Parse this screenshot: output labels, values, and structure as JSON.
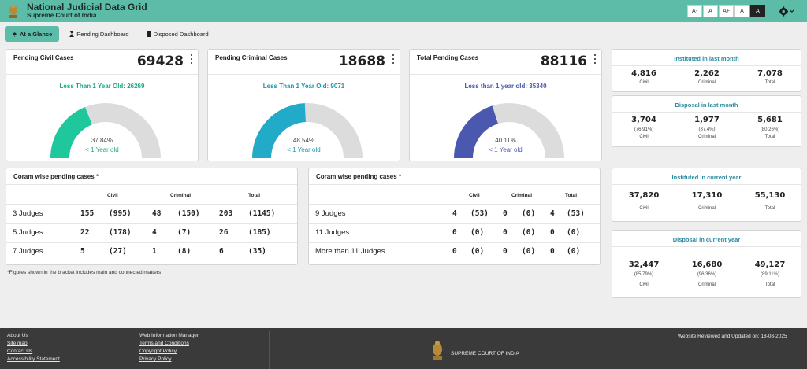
{
  "header": {
    "title": "National Judicial Data Grid",
    "subtitle": "Supreme Court of India",
    "font_buttons": [
      "A-",
      "A",
      "A+",
      "A",
      "A"
    ],
    "settings_icon": "gear-icon",
    "bg_color": "#5cbca7"
  },
  "tabs": [
    {
      "label": "At a Glance",
      "icon": "bell-icon",
      "active": true
    },
    {
      "label": "Pending Dashboard",
      "icon": "hourglass-icon",
      "active": false
    },
    {
      "label": "Disposed Dashboard",
      "icon": "trash-icon",
      "active": false
    }
  ],
  "cards": [
    {
      "title": "Pending Civil Cases",
      "total": "69428",
      "sub": "Less Than 1 Year Old: 26269",
      "percent": "37.84%",
      "fraction": 0.3784,
      "label": "< 1 Year old",
      "color": "#1fc79c"
    },
    {
      "title": "Pending Criminal Cases",
      "total": "18688",
      "sub": "Less Than 1 Year Old: 9071",
      "percent": "48.54%",
      "fraction": 0.4854,
      "label": "< 1 Year old",
      "color": "#22aac9"
    },
    {
      "title": "Total Pending Cases",
      "total": "88116",
      "sub": "Less than 1 year old: 35340",
      "percent": "40.11%",
      "fraction": 0.4011,
      "label": "< 1 Year old",
      "color": "#4a58b0"
    }
  ],
  "stats": {
    "instituted_month": {
      "title": "Instituted in last month",
      "cols": [
        {
          "value": "4,816",
          "label": "Civil"
        },
        {
          "value": "2,262",
          "label": "Criminal"
        },
        {
          "value": "7,078",
          "label": "Total"
        }
      ]
    },
    "disposal_month": {
      "title": "Disposal in last month",
      "cols": [
        {
          "value": "3,704",
          "pct": "(76.91%)",
          "label": "Civil"
        },
        {
          "value": "1,977",
          "pct": "(87.4%)",
          "label": "Criminal"
        },
        {
          "value": "5,681",
          "pct": "(80.26%)",
          "label": "Total"
        }
      ]
    },
    "instituted_year": {
      "title": "Instituted in current year",
      "cols": [
        {
          "value": "37,820",
          "label": "Civil"
        },
        {
          "value": "17,310",
          "label": "Criminal"
        },
        {
          "value": "55,130",
          "label": "Total"
        }
      ]
    },
    "disposal_year": {
      "title": "Disposal in current year",
      "cols": [
        {
          "value": "32,447",
          "pct": "(85.79%)",
          "label": "Civil"
        },
        {
          "value": "16,680",
          "pct": "(96.36%)",
          "label": "Criminal"
        },
        {
          "value": "49,127",
          "pct": "(89.11%)",
          "label": "Total"
        }
      ]
    }
  },
  "coram_left": {
    "title": "Coram wise pending cases",
    "required": "*",
    "headers": [
      "Civil",
      "Criminal",
      "Total"
    ],
    "rows": [
      {
        "label": "3 Judges",
        "civil": "155",
        "civil_b": "(995)",
        "criminal": "48",
        "criminal_b": "(150)",
        "total": "203",
        "total_b": "(1145)"
      },
      {
        "label": "5 Judges",
        "civil": "22",
        "civil_b": "(178)",
        "criminal": "4",
        "criminal_b": "(7)",
        "total": "26",
        "total_b": "(185)"
      },
      {
        "label": "7 Judges",
        "civil": "5",
        "civil_b": "(27)",
        "criminal": "1",
        "criminal_b": "(8)",
        "total": "6",
        "total_b": "(35)"
      }
    ]
  },
  "coram_right": {
    "title": "Coram wise pending cases",
    "required": "*",
    "headers": [
      "Civil",
      "Criminal",
      "Total"
    ],
    "rows": [
      {
        "label": "9 Judges",
        "civil": "4",
        "civil_b": "(53)",
        "criminal": "0",
        "criminal_b": "(0)",
        "total": "4",
        "total_b": "(53)"
      },
      {
        "label": "11 Judges",
        "civil": "0",
        "civil_b": "(0)",
        "criminal": "0",
        "criminal_b": "(0)",
        "total": "0",
        "total_b": "(0)"
      },
      {
        "label": "More than 11 Judges",
        "civil": "0",
        "civil_b": "(0)",
        "criminal": "0",
        "criminal_b": "(0)",
        "total": "0",
        "total_b": "(0)"
      }
    ]
  },
  "footnote": {
    "star": "*",
    "text": "Figures shown in the bracket includes main and connected matters"
  },
  "footer": {
    "links_col1": [
      "About Us",
      "Site map",
      "Contact Us",
      "Accessibility Statement"
    ],
    "links_col2": [
      "Web Information Manager",
      "Terms and Conditions",
      "Copyright Policy",
      "Privacy Policy"
    ],
    "court_link": "SUPREME COURT OF INDIA",
    "reviewed": "Website Reviewed and Updated on: 18-08-2025"
  }
}
